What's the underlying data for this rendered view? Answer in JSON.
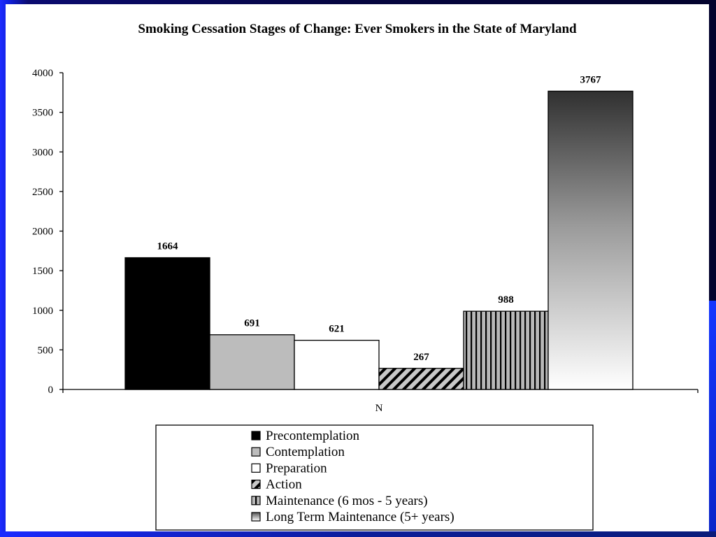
{
  "colors": {
    "frame_bright": "#1d2cff",
    "frame_dark": "#03032d",
    "panel": "#ffffff",
    "bar_outline": "#000000"
  },
  "chart_data": {
    "type": "bar",
    "title": "Smoking Cessation Stages of Change:  Ever Smokers in the State of Maryland",
    "categories": [
      "N"
    ],
    "xlabel": "",
    "ylabel": "",
    "ylim": [
      0,
      4000
    ],
    "yticks": [
      "0",
      "500",
      "1000",
      "1500",
      "2000",
      "2500",
      "3000",
      "3500",
      "4000"
    ],
    "grid": false,
    "legend_position": "bottom",
    "series": [
      {
        "name": "Precontemplation",
        "values": [
          1664
        ],
        "label": "1664",
        "fill": "solid-black"
      },
      {
        "name": "Contemplation",
        "values": [
          691
        ],
        "label": "691",
        "fill": "solid-gray"
      },
      {
        "name": "Preparation",
        "values": [
          621
        ],
        "label": "621",
        "fill": "white"
      },
      {
        "name": "Action",
        "values": [
          267
        ],
        "label": "267",
        "fill": "diagonal-hatch"
      },
      {
        "name": "Maintenance (6 mos - 5 years)",
        "values": [
          988
        ],
        "label": "988",
        "fill": "vertical-lines"
      },
      {
        "name": "Long Term Maintenance (5+ years)",
        "values": [
          3767
        ],
        "label": "3767",
        "fill": "gradient-dark-to-white"
      }
    ]
  }
}
